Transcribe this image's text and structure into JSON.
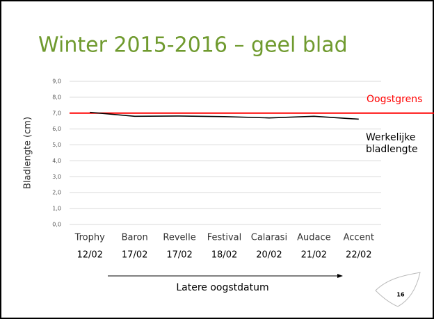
{
  "chart_data": {
    "type": "line",
    "title": "Winter 2015-2016 – geel blad",
    "ylabel": "Bladlengte (cm)",
    "xlabel": "Latere oogstdatum",
    "categories": [
      "Trophy",
      "Baron",
      "Revelle",
      "Festival",
      "Calarasi",
      "Audace",
      "Accent"
    ],
    "dates": [
      "12/02",
      "17/02",
      "17/02",
      "18/02",
      "20/02",
      "21/02",
      "22/02"
    ],
    "series": [
      {
        "name": "Werkelijke bladlengte",
        "color": "#000000",
        "values": [
          7.05,
          6.8,
          6.82,
          6.78,
          6.7,
          6.8,
          6.62
        ]
      }
    ],
    "reference_lines": [
      {
        "name": "Oogstgrens",
        "value": 7.0,
        "color": "#ff0000"
      }
    ],
    "ylim": [
      0,
      9
    ],
    "yticks": [
      {
        "value": 0,
        "label": "0,0"
      },
      {
        "value": 1,
        "label": "1,0"
      },
      {
        "value": 2,
        "label": "2,0"
      },
      {
        "value": 3,
        "label": "3,0"
      },
      {
        "value": 4,
        "label": "4,0"
      },
      {
        "value": 5,
        "label": "5,0"
      },
      {
        "value": 6,
        "label": "6,0"
      },
      {
        "value": 7,
        "label": "7,0"
      },
      {
        "value": 8,
        "label": "8,0"
      },
      {
        "value": 9,
        "label": "9,0"
      }
    ],
    "grid": true
  },
  "page_number": "16"
}
